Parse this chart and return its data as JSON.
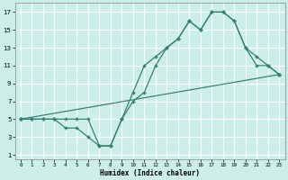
{
  "xlabel": "Humidex (Indice chaleur)",
  "bg_color": "#cceee8",
  "grid_color": "#ffffff",
  "line_color": "#2e7d6e",
  "xlim": [
    -0.5,
    23.5
  ],
  "ylim": [
    0.5,
    18
  ],
  "xticks": [
    0,
    1,
    2,
    3,
    4,
    5,
    6,
    7,
    8,
    9,
    10,
    11,
    12,
    13,
    14,
    15,
    16,
    17,
    18,
    19,
    20,
    21,
    22,
    23
  ],
  "yticks": [
    1,
    3,
    5,
    7,
    9,
    11,
    13,
    15,
    17
  ],
  "series1_x": [
    0,
    1,
    2,
    3,
    4,
    5,
    6,
    7,
    8,
    9,
    10,
    11,
    12,
    13,
    14,
    15,
    16,
    17,
    18,
    19,
    20,
    21,
    22,
    23
  ],
  "series1_y": [
    5,
    5,
    5,
    5,
    4,
    4,
    3,
    2,
    2,
    5,
    7,
    8,
    11,
    13,
    14,
    16,
    15,
    17,
    17,
    16,
    13,
    11,
    11,
    10
  ],
  "series2_x": [
    0,
    1,
    2,
    3,
    4,
    5,
    6,
    7,
    8,
    9,
    10,
    11,
    12,
    13,
    14,
    15,
    16,
    17,
    18,
    19,
    20,
    21,
    22,
    23
  ],
  "series2_y": [
    5,
    5,
    5,
    5,
    5,
    5,
    5,
    2,
    2,
    5,
    8,
    11,
    12,
    13,
    14,
    16,
    15,
    17,
    17,
    16,
    13,
    12,
    11,
    10
  ],
  "series3_x": [
    0,
    23
  ],
  "series3_y": [
    5,
    10
  ]
}
